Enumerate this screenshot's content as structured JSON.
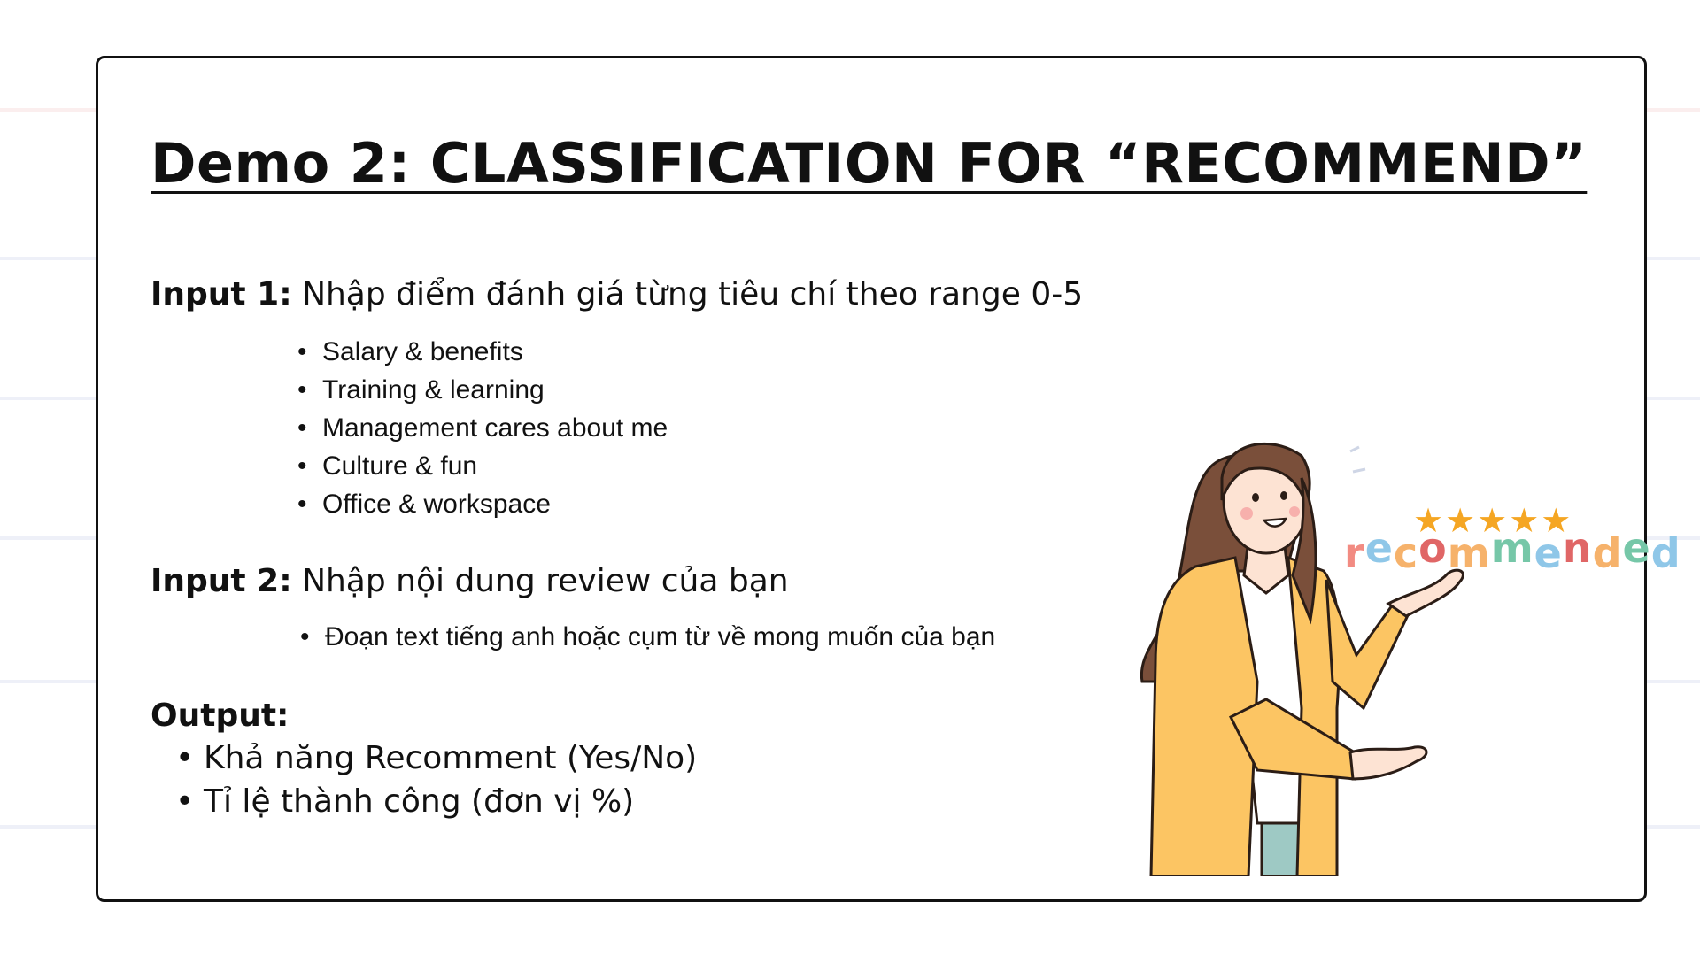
{
  "title": "Demo 2: CLASSIFICATION FOR “RECOMMEND”",
  "input1": {
    "label": "Input 1:",
    "text": "Nhập điểm đánh giá từng tiêu chí theo range 0-5",
    "items": [
      "Salary & benefits",
      "Training & learning",
      "Management cares about me",
      "Culture & fun",
      "Office & workspace"
    ]
  },
  "input2": {
    "label": "Input 2:",
    "text": "Nhập nội dung review của bạn",
    "items": [
      "Đoạn text tiếng anh hoặc cụm từ về mong muốn của bạn"
    ]
  },
  "output": {
    "label": "Output:",
    "items": [
      "Khả năng Recomment (Yes/No)",
      "Tỉ lệ thành công (đơn vị %)"
    ]
  },
  "badge": {
    "stars": "★★★★★",
    "letters": [
      "r",
      "e",
      "c",
      "o",
      "m",
      "m",
      "e",
      "n",
      "d",
      "e",
      "d"
    ],
    "letter_colors": [
      "#f28b82",
      "#8fc7e8",
      "#f6b26b",
      "#e06666",
      "#f6b26b",
      "#76c7a8",
      "#8fc7e8",
      "#e06666",
      "#f6b26b",
      "#76c7a8",
      "#8fc7e8"
    ]
  },
  "colors": {
    "jacket": "#fcc563",
    "hair": "#7a4f3a",
    "skin": "#fde3d3",
    "pants": "#9ec9c4",
    "star": "#f5a623"
  }
}
